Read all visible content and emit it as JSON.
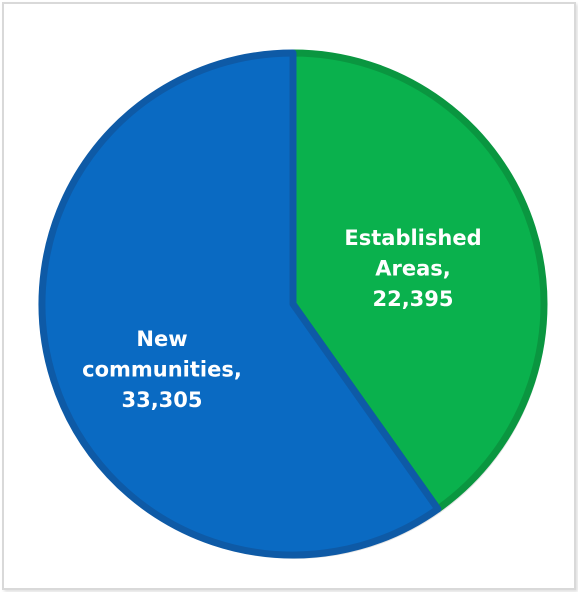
{
  "chart_data": {
    "type": "pie",
    "slices": [
      {
        "category": "Established Areas",
        "value": 22395,
        "label_lines": [
          "Established",
          "Areas,",
          "22,395"
        ],
        "color": "#0ab14d",
        "edge_color": "#0a9640"
      },
      {
        "category": "New communities",
        "value": 33305,
        "label_lines": [
          "New",
          "communities,",
          "33,305"
        ],
        "color": "#0a6ac2",
        "edge_color": "#0e5aa6"
      }
    ],
    "start": "12 o'clock, clockwise",
    "legend": "none"
  }
}
